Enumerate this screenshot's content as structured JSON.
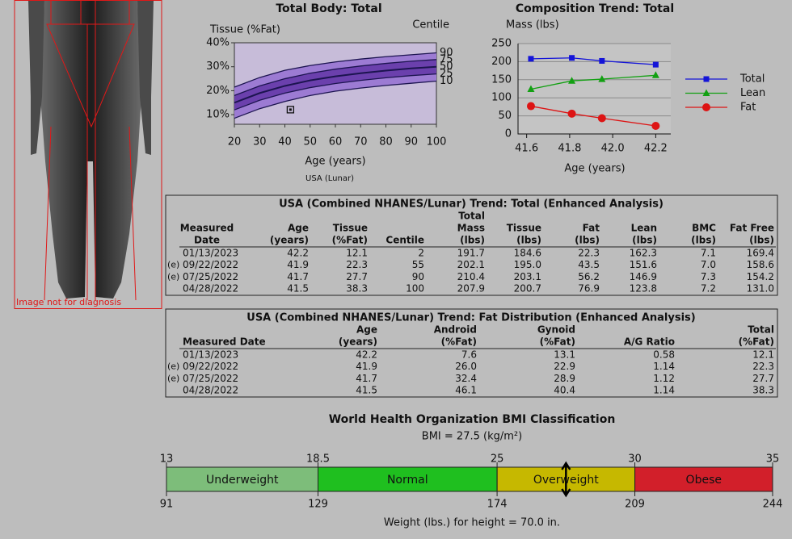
{
  "body_image": {
    "caption": "Image not for diagnosis"
  },
  "chart_data": [
    {
      "type": "centile",
      "title": "Total Body: Total",
      "y_label": "Tissue (%Fat)",
      "centile_label": "Centile",
      "x_label": "Age (years)",
      "note": "USA (Lunar)",
      "x": [
        20,
        30,
        40,
        50,
        60,
        70,
        80,
        90,
        100
      ],
      "series": [
        {
          "name": "90",
          "values": [
            21.5,
            25.5,
            28.5,
            30.5,
            32,
            33.2,
            34.2,
            35,
            35.8
          ]
        },
        {
          "name": "75",
          "values": [
            18,
            22,
            25,
            27.3,
            29,
            30.3,
            31.4,
            32.3,
            33
          ]
        },
        {
          "name": "50",
          "values": [
            15,
            19,
            22,
            24.3,
            26,
            27.3,
            28.4,
            29.3,
            30
          ]
        },
        {
          "name": "25",
          "values": [
            12,
            16,
            19,
            21.3,
            23,
            24.3,
            25.4,
            26.3,
            27
          ]
        },
        {
          "name": "10",
          "values": [
            8.5,
            12.5,
            15.5,
            18,
            19.8,
            21.1,
            22.2,
            23.1,
            24
          ]
        }
      ],
      "point": {
        "x": 42.2,
        "y": 12.1
      },
      "xlim": [
        20,
        100
      ],
      "ylim": [
        6,
        40
      ],
      "xticks": [
        20,
        30,
        40,
        50,
        60,
        70,
        80,
        90,
        100
      ],
      "yticks": [
        {
          "value": 40,
          "label": "40%"
        },
        {
          "value": 30,
          "label": "30%"
        },
        {
          "value": 20,
          "label": "20%"
        },
        {
          "value": 10,
          "label": "10%"
        }
      ],
      "background": "#c7bcd9",
      "band_outer_color": "#9c7bd3",
      "band_inner_color": "#6b40ad",
      "line_color": "#1c1450"
    },
    {
      "type": "line",
      "title": "Composition Trend: Total",
      "y_label": "Mass (lbs)",
      "x_label": "Age (years)",
      "x": [
        41.62,
        41.81,
        41.95,
        42.2
      ],
      "series": [
        {
          "name": "Total",
          "color": "#1414d8",
          "marker": "square",
          "values": [
            207.9,
            210.4,
            202.1,
            191.7
          ]
        },
        {
          "name": "Lean",
          "color": "#12a012",
          "marker": "triangle",
          "values": [
            123.8,
            146.9,
            151.6,
            162.3
          ]
        },
        {
          "name": "Fat",
          "color": "#dd1414",
          "marker": "circle",
          "values": [
            76.9,
            56.2,
            43.5,
            22.3
          ]
        }
      ],
      "xlim": [
        41.56,
        42.27
      ],
      "ylim": [
        0,
        250
      ],
      "xticks": [
        41.6,
        41.8,
        {
          "value": 42,
          "label": "42.0"
        },
        42.2
      ],
      "yticks": [
        0,
        50,
        100,
        150,
        200,
        250
      ],
      "grid": true
    }
  ],
  "table1": {
    "title": "USA (Combined NHANES/Lunar) Trend: Total (Enhanced Analysis)",
    "headers": [
      [
        "Measured",
        "Date"
      ],
      [
        "Age",
        "(years)"
      ],
      [
        "Tissue",
        "(%Fat)"
      ],
      [
        "Centile"
      ],
      [
        "Total",
        "Mass",
        "(lbs)"
      ],
      [
        "Tissue",
        "(lbs)"
      ],
      [
        "Fat",
        "(lbs)"
      ],
      [
        "Lean",
        "(lbs)"
      ],
      [
        "BMC",
        "(lbs)"
      ],
      [
        "Fat Free",
        "(lbs)"
      ]
    ],
    "rows": [
      {
        "cells": [
          "01/13/2023",
          "42.2",
          "12.1",
          "2",
          "191.7",
          "184.6",
          "22.3",
          "162.3",
          "7.1",
          "169.4"
        ]
      },
      {
        "flag": "(e)",
        "cells": [
          "09/22/2022",
          "41.9",
          "22.3",
          "55",
          "202.1",
          "195.0",
          "43.5",
          "151.6",
          "7.0",
          "158.6"
        ]
      },
      {
        "flag": "(e)",
        "cells": [
          "07/25/2022",
          "41.7",
          "27.7",
          "90",
          "210.4",
          "203.1",
          "56.2",
          "146.9",
          "7.3",
          "154.2"
        ]
      },
      {
        "cells": [
          "04/28/2022",
          "41.5",
          "38.3",
          "100",
          "207.9",
          "200.7",
          "76.9",
          "123.8",
          "7.2",
          "131.0"
        ]
      }
    ]
  },
  "table2": {
    "title": "USA (Combined NHANES/Lunar) Trend:  Fat Distribution (Enhanced Analysis)",
    "headers": [
      [
        "Measured Date"
      ],
      [
        "Age",
        "(years)"
      ],
      [
        "Android",
        "(%Fat)"
      ],
      [
        "Gynoid",
        "(%Fat)"
      ],
      [
        "A/G Ratio"
      ],
      [
        "Total",
        "(%Fat)"
      ]
    ],
    "rows": [
      {
        "cells": [
          "01/13/2023",
          "42.2",
          "7.6",
          "13.1",
          "0.58",
          "12.1"
        ]
      },
      {
        "flag": "(e)",
        "cells": [
          "09/22/2022",
          "41.9",
          "26.0",
          "22.9",
          "1.14",
          "22.3"
        ]
      },
      {
        "flag": "(e)",
        "cells": [
          "07/25/2022",
          "41.7",
          "32.4",
          "28.9",
          "1.12",
          "27.7"
        ]
      },
      {
        "cells": [
          "04/28/2022",
          "41.5",
          "46.1",
          "40.4",
          "1.14",
          "38.3"
        ]
      }
    ]
  },
  "bmi_scale": {
    "title": "World Health Organization BMI Classification",
    "bmi_text": "BMI = 27.5 (kg/m²)",
    "bmi": 27.5,
    "lim": [
      13,
      35
    ],
    "ticks": [
      13,
      18.5,
      25,
      30,
      35
    ],
    "weights": [
      "91",
      "129",
      "174",
      "209",
      "244"
    ],
    "segments": [
      {
        "name": "Underweight",
        "color": "#7dbd7a"
      },
      {
        "name": "Normal",
        "color": "#1fbf1f"
      },
      {
        "name": "Overweight",
        "color": "#c6b800"
      },
      {
        "name": "Obese",
        "color": "#d21f2a"
      }
    ],
    "footer": "Weight (lbs.) for height = 70.0 in."
  }
}
